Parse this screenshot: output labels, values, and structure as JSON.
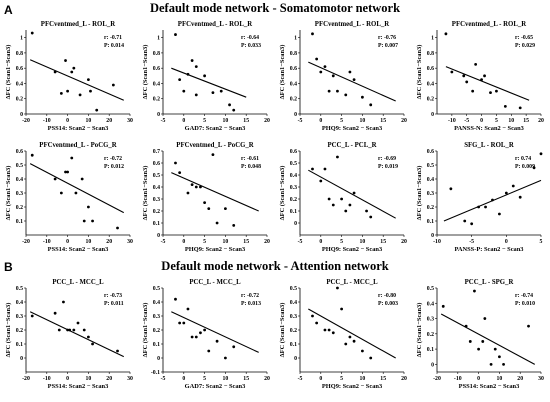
{
  "sections": [
    {
      "letter": "A",
      "title": "Default mode network - Somatomotor network"
    },
    {
      "letter": "B",
      "title": "Default mode network - Attention network"
    }
  ],
  "chart_data": [
    {
      "type": "scatter",
      "section": 0,
      "row": 0,
      "col": 0,
      "title": "PFCventmed_L - ROL_R",
      "xlabel": "PSS14: Scan2 − Scan3",
      "ylabel": "ΔFC (Scan1−Scan3)",
      "xlim": [
        -20,
        30
      ],
      "xticks": [
        -20,
        -10,
        0,
        10,
        20,
        30
      ],
      "ylim": [
        0,
        1.1
      ],
      "yticks": [
        0,
        0.2,
        0.4,
        0.6,
        0.8,
        1
      ],
      "r": "r: -0.71",
      "p": "P: 0.014",
      "fit": {
        "x": [
          -18,
          27
        ],
        "y": [
          0.71,
          0.18
        ]
      },
      "points": [
        [
          -17,
          1.06
        ],
        [
          -6,
          0.55
        ],
        [
          -3,
          0.27
        ],
        [
          -1,
          0.7
        ],
        [
          0,
          0.3
        ],
        [
          2,
          0.55
        ],
        [
          3,
          0.6
        ],
        [
          6,
          0.25
        ],
        [
          10,
          0.45
        ],
        [
          11,
          0.3
        ],
        [
          14,
          0.05
        ],
        [
          22,
          0.38
        ]
      ]
    },
    {
      "type": "scatter",
      "section": 0,
      "row": 0,
      "col": 1,
      "title": "PFCventmed_L - ROL_R",
      "xlabel": "GAD7: Scan2 − Scan3",
      "ylabel": "ΔFC (Scan1−Scan3)",
      "xlim": [
        -5,
        20
      ],
      "xticks": [
        -5,
        0,
        5,
        10,
        15,
        20
      ],
      "ylim": [
        0,
        1.1
      ],
      "yticks": [
        0,
        0.2,
        0.4,
        0.6,
        0.8,
        1
      ],
      "r": "r: -0.64",
      "p": "P: 0.033",
      "fit": {
        "x": [
          -3,
          15
        ],
        "y": [
          0.6,
          0.22
        ]
      },
      "points": [
        [
          -2,
          1.04
        ],
        [
          -1,
          0.45
        ],
        [
          0,
          0.3
        ],
        [
          1,
          0.52
        ],
        [
          2,
          0.7
        ],
        [
          3,
          0.62
        ],
        [
          3,
          0.25
        ],
        [
          5,
          0.5
        ],
        [
          7,
          0.28
        ],
        [
          9,
          0.3
        ],
        [
          11,
          0.12
        ],
        [
          12,
          0.05
        ]
      ]
    },
    {
      "type": "scatter",
      "section": 0,
      "row": 0,
      "col": 2,
      "title": "PFCventmed_L - ROL_R",
      "xlabel": "PHQ9: Scan2 − Scan3",
      "ylabel": "ΔFC (Scan1−Scan3)",
      "xlim": [
        -5,
        20
      ],
      "xticks": [
        -5,
        0,
        5,
        10,
        15,
        20
      ],
      "ylim": [
        0,
        1.1
      ],
      "yticks": [
        0,
        0.2,
        0.4,
        0.6,
        0.8,
        1
      ],
      "r": "r: -0.76",
      "p": "P: 0.007",
      "fit": {
        "x": [
          -3,
          18
        ],
        "y": [
          0.68,
          0.17
        ]
      },
      "points": [
        [
          -2,
          1.05
        ],
        [
          -1,
          0.72
        ],
        [
          0,
          0.55
        ],
        [
          1,
          0.62
        ],
        [
          2,
          0.3
        ],
        [
          3,
          0.5
        ],
        [
          4,
          0.3
        ],
        [
          6,
          0.25
        ],
        [
          7,
          0.55
        ],
        [
          8,
          0.45
        ],
        [
          10,
          0.22
        ],
        [
          12,
          0.12
        ]
      ]
    },
    {
      "type": "scatter",
      "section": 0,
      "row": 0,
      "col": 3,
      "title": "PFCventmed_L - ROL_R",
      "xlabel": "PANSS-N: Scan2 − Scan3",
      "ylabel": "ΔFC (Scan1−Scan3)",
      "xlim": [
        -15,
        20
      ],
      "xticks": [
        -10,
        -5,
        0,
        5,
        10,
        15,
        20
      ],
      "ylim": [
        0,
        1.1
      ],
      "yticks": [
        0,
        0.2,
        0.4,
        0.6,
        0.8,
        1
      ],
      "r": "r: -0.65",
      "p": "P: 0.029",
      "fit": {
        "x": [
          -12,
          16
        ],
        "y": [
          0.62,
          0.18
        ]
      },
      "points": [
        [
          -12,
          1.05
        ],
        [
          -10,
          0.55
        ],
        [
          -6,
          0.5
        ],
        [
          -5,
          0.42
        ],
        [
          -3,
          0.3
        ],
        [
          -2,
          0.65
        ],
        [
          0,
          0.45
        ],
        [
          1,
          0.5
        ],
        [
          3,
          0.28
        ],
        [
          5,
          0.3
        ],
        [
          8,
          0.1
        ],
        [
          13,
          0.08
        ]
      ]
    },
    {
      "type": "scatter",
      "section": 0,
      "row": 1,
      "col": 0,
      "title": "PFCventmed_L - PoCG_R",
      "xlabel": "PSS14: Scan2 − Scan3",
      "ylabel": "ΔFC (Scan1−Scan3)",
      "xlim": [
        -20,
        30
      ],
      "xticks": [
        -20,
        -10,
        0,
        10,
        20,
        30
      ],
      "ylim": [
        0,
        0.6
      ],
      "yticks": [
        0.1,
        0.2,
        0.3,
        0.4,
        0.5,
        0.6
      ],
      "r": "r: -0.72",
      "p": "P: 0.012",
      "fit": {
        "x": [
          -18,
          27
        ],
        "y": [
          0.51,
          0.16
        ]
      },
      "points": [
        [
          -17,
          0.57
        ],
        [
          -6,
          0.4
        ],
        [
          -3,
          0.3
        ],
        [
          -1,
          0.45
        ],
        [
          0,
          0.45
        ],
        [
          2,
          0.55
        ],
        [
          4,
          0.3
        ],
        [
          7,
          0.4
        ],
        [
          8,
          0.1
        ],
        [
          10,
          0.2
        ],
        [
          12,
          0.1
        ],
        [
          24,
          0.05
        ]
      ]
    },
    {
      "type": "scatter",
      "section": 0,
      "row": 1,
      "col": 1,
      "title": "PFCventmed_L - PoCG_R",
      "xlabel": "PHQ9: Scan2 − Scan3",
      "ylabel": "ΔFC (Scan1−Scan3)",
      "xlim": [
        -5,
        20
      ],
      "xticks": [
        -5,
        0,
        5,
        10,
        15,
        20
      ],
      "ylim": [
        0,
        0.7
      ],
      "yticks": [
        0,
        0.1,
        0.2,
        0.3,
        0.4,
        0.5,
        0.6,
        0.7
      ],
      "r": "r: -0.61",
      "p": "P: 0.048",
      "fit": {
        "x": [
          -3,
          18
        ],
        "y": [
          0.52,
          0.2
        ]
      },
      "points": [
        [
          -2,
          0.6
        ],
        [
          -1,
          0.52
        ],
        [
          1,
          0.35
        ],
        [
          2,
          0.42
        ],
        [
          3,
          0.4
        ],
        [
          4,
          0.4
        ],
        [
          5,
          0.27
        ],
        [
          6,
          0.22
        ],
        [
          7,
          0.67
        ],
        [
          8,
          0.1
        ],
        [
          10,
          0.22
        ],
        [
          12,
          0.08
        ]
      ]
    },
    {
      "type": "scatter",
      "section": 0,
      "row": 1,
      "col": 2,
      "title": "PCC_L - PCL_R",
      "xlabel": "PHQ9: Scan2 − Scan3",
      "ylabel": "ΔFC (Scan1−Scan3)",
      "xlim": [
        -5,
        20
      ],
      "xticks": [
        -5,
        0,
        5,
        10,
        15,
        20
      ],
      "ylim": [
        -0.1,
        0.6
      ],
      "yticks": [
        0,
        0.1,
        0.2,
        0.3,
        0.4,
        0.5,
        0.6
      ],
      "r": "r: -0.69",
      "p": "P: 0.019",
      "fit": {
        "x": [
          -3,
          18
        ],
        "y": [
          0.44,
          0.04
        ]
      },
      "points": [
        [
          -2,
          0.45
        ],
        [
          0,
          0.35
        ],
        [
          1,
          0.45
        ],
        [
          2,
          0.2
        ],
        [
          3,
          0.15
        ],
        [
          4,
          0.55
        ],
        [
          5,
          0.2
        ],
        [
          6,
          0.1
        ],
        [
          7,
          0.15
        ],
        [
          8,
          0.25
        ],
        [
          11,
          0.1
        ],
        [
          12,
          0.05
        ]
      ]
    },
    {
      "type": "scatter",
      "section": 0,
      "row": 1,
      "col": 3,
      "title": "SFG_L - ROL_R",
      "xlabel": "PANSS-P: Scan2 − Scan3",
      "ylabel": "ΔFC (Scan1−Scan3)",
      "xlim": [
        -10,
        5
      ],
      "xticks": [
        -10,
        -5,
        0,
        5
      ],
      "ylim": [
        0,
        0.6
      ],
      "yticks": [
        0,
        0.1,
        0.2,
        0.3,
        0.4,
        0.5,
        0.6
      ],
      "r": "r: 0.74",
      "p": "P: 0.009",
      "fit": {
        "x": [
          -9,
          5
        ],
        "y": [
          0.1,
          0.39
        ]
      },
      "points": [
        [
          -8,
          0.33
        ],
        [
          -6,
          0.1
        ],
        [
          -5,
          0.08
        ],
        [
          -4,
          0.2
        ],
        [
          -3,
          0.2
        ],
        [
          -2,
          0.25
        ],
        [
          -1,
          0.15
        ],
        [
          0,
          0.3
        ],
        [
          1,
          0.35
        ],
        [
          2,
          0.27
        ],
        [
          4,
          0.48
        ],
        [
          5,
          0.58
        ]
      ]
    },
    {
      "type": "scatter",
      "section": 1,
      "row": 0,
      "col": 0,
      "title": "PCC_L - MCC_L",
      "xlabel": "PSS14: Scan2 − Scan3",
      "ylabel": "ΔFC (Scan1−Scan3)",
      "xlim": [
        -20,
        30
      ],
      "xticks": [
        -20,
        -10,
        0,
        10,
        20,
        30
      ],
      "ylim": [
        -0.1,
        0.5
      ],
      "yticks": [
        0,
        0.1,
        0.2,
        0.3,
        0.4,
        0.5
      ],
      "r": "r: -0.73",
      "p": "P: 0.011",
      "fit": {
        "x": [
          -18,
          27
        ],
        "y": [
          0.33,
          0.01
        ]
      },
      "points": [
        [
          -17,
          0.3
        ],
        [
          -6,
          0.32
        ],
        [
          -4,
          0.2
        ],
        [
          -2,
          0.4
        ],
        [
          0,
          0.2
        ],
        [
          1,
          0.2
        ],
        [
          3,
          0.2
        ],
        [
          5,
          0.25
        ],
        [
          8,
          0.2
        ],
        [
          10,
          0.15
        ],
        [
          12,
          0.1
        ],
        [
          24,
          0.05
        ]
      ]
    },
    {
      "type": "scatter",
      "section": 1,
      "row": 0,
      "col": 1,
      "title": "PCC_L - MCC_L",
      "xlabel": "GAD7: Scan2 − Scan3",
      "ylabel": "ΔFC (Scan1−Scan3)",
      "xlim": [
        -5,
        20
      ],
      "xticks": [
        -5,
        0,
        5,
        10,
        15,
        20
      ],
      "ylim": [
        -0.1,
        0.5
      ],
      "yticks": [
        -0.1,
        0,
        0.1,
        0.2,
        0.3,
        0.4,
        0.5
      ],
      "r": "r: -0.72",
      "p": "P: 0.013",
      "fit": {
        "x": [
          -3,
          18
        ],
        "y": [
          0.33,
          0.04
        ]
      },
      "points": [
        [
          -2,
          0.42
        ],
        [
          -1,
          0.25
        ],
        [
          0,
          0.25
        ],
        [
          1,
          0.35
        ],
        [
          2,
          0.15
        ],
        [
          3,
          0.15
        ],
        [
          4,
          0.18
        ],
        [
          5,
          0.2
        ],
        [
          6,
          0.05
        ],
        [
          8,
          0.12
        ],
        [
          10,
          0.0
        ],
        [
          12,
          0.08
        ]
      ]
    },
    {
      "type": "scatter",
      "section": 1,
      "row": 0,
      "col": 2,
      "title": "PCC_L - MCC_L",
      "xlabel": "PHQ9: Scan2 − Scan3",
      "ylabel": "ΔFC (Scan1−Scan3)",
      "xlim": [
        -5,
        20
      ],
      "xticks": [
        -5,
        0,
        5,
        10,
        15,
        20
      ],
      "ylim": [
        -0.1,
        0.5
      ],
      "yticks": [
        0,
        0.1,
        0.2,
        0.3,
        0.4,
        0.5
      ],
      "r": "r: -0.80",
      "p": "P: 0.003",
      "fit": {
        "x": [
          -3,
          18
        ],
        "y": [
          0.35,
          0.0
        ]
      },
      "points": [
        [
          -2,
          0.3
        ],
        [
          -1,
          0.25
        ],
        [
          1,
          0.2
        ],
        [
          2,
          0.2
        ],
        [
          3,
          0.18
        ],
        [
          4,
          0.5
        ],
        [
          5,
          0.35
        ],
        [
          6,
          0.1
        ],
        [
          7,
          0.15
        ],
        [
          8,
          0.12
        ],
        [
          10,
          0.05
        ],
        [
          12,
          0.0
        ]
      ]
    },
    {
      "type": "scatter",
      "section": 1,
      "row": 0,
      "col": 3,
      "title": "PCC_L - SPG_R",
      "xlabel": "PSS14: Scan2 − Scan3",
      "ylabel": "ΔFC (Scan1−Scan3)",
      "xlim": [
        -20,
        30
      ],
      "xticks": [
        -20,
        -10,
        0,
        10,
        20,
        30
      ],
      "ylim": [
        -0.05,
        0.5
      ],
      "yticks": [
        0,
        0.1,
        0.2,
        0.3,
        0.4,
        0.5
      ],
      "r": "r: -0.74",
      "p": "P: 0.010",
      "fit": {
        "x": [
          -18,
          27
        ],
        "y": [
          0.33,
          0.0
        ]
      },
      "points": [
        [
          -17,
          0.38
        ],
        [
          -6,
          0.25
        ],
        [
          -4,
          0.15
        ],
        [
          -2,
          0.48
        ],
        [
          0,
          0.1
        ],
        [
          2,
          0.15
        ],
        [
          3,
          0.3
        ],
        [
          6,
          0.0
        ],
        [
          8,
          0.1
        ],
        [
          10,
          0.05
        ],
        [
          12,
          0.0
        ],
        [
          24,
          0.25
        ]
      ]
    }
  ]
}
